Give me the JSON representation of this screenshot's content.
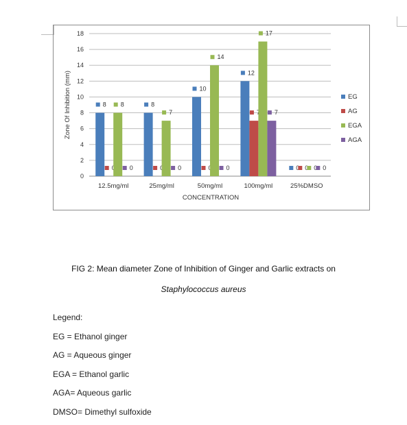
{
  "chart_data": {
    "type": "bar",
    "xlabel": "CONCENTRATION",
    "ylabel": "Zone Of Inhibition (mm)",
    "ylim": [
      0,
      18
    ],
    "yticks": [
      0,
      2,
      4,
      6,
      8,
      10,
      12,
      14,
      16,
      18
    ],
    "grid": true,
    "legend_position": "right",
    "categories": [
      "12.5mg/ml",
      "25mg/ml",
      "50mg/ml",
      "100mg/ml",
      "25%DMSO"
    ],
    "series": [
      {
        "name": "EG",
        "color": "#4a7ebb",
        "values": [
          8,
          8,
          10,
          12,
          0
        ]
      },
      {
        "name": "AG",
        "color": "#be4b48",
        "values": [
          0,
          0,
          0,
          7,
          0
        ]
      },
      {
        "name": "EGA",
        "color": "#98b954",
        "values": [
          8,
          7,
          14,
          17,
          0
        ]
      },
      {
        "name": "AGA",
        "color": "#7d60a0",
        "values": [
          0,
          0,
          0,
          7,
          0
        ]
      }
    ]
  },
  "caption": {
    "title": "FIG 2:  Mean diameter Zone of Inhibition of Ginger and Garlic extracts on",
    "organism": "Staphylococcus aureus"
  },
  "legend_text": {
    "heading": "Legend:",
    "lines": [
      "EG = Ethanol ginger",
      "AG = Aqueous ginger",
      "EGA = Ethanol garlic",
      "AGA= Aqueous garlic",
      "DMSO= Dimethyl sulfoxide"
    ]
  }
}
